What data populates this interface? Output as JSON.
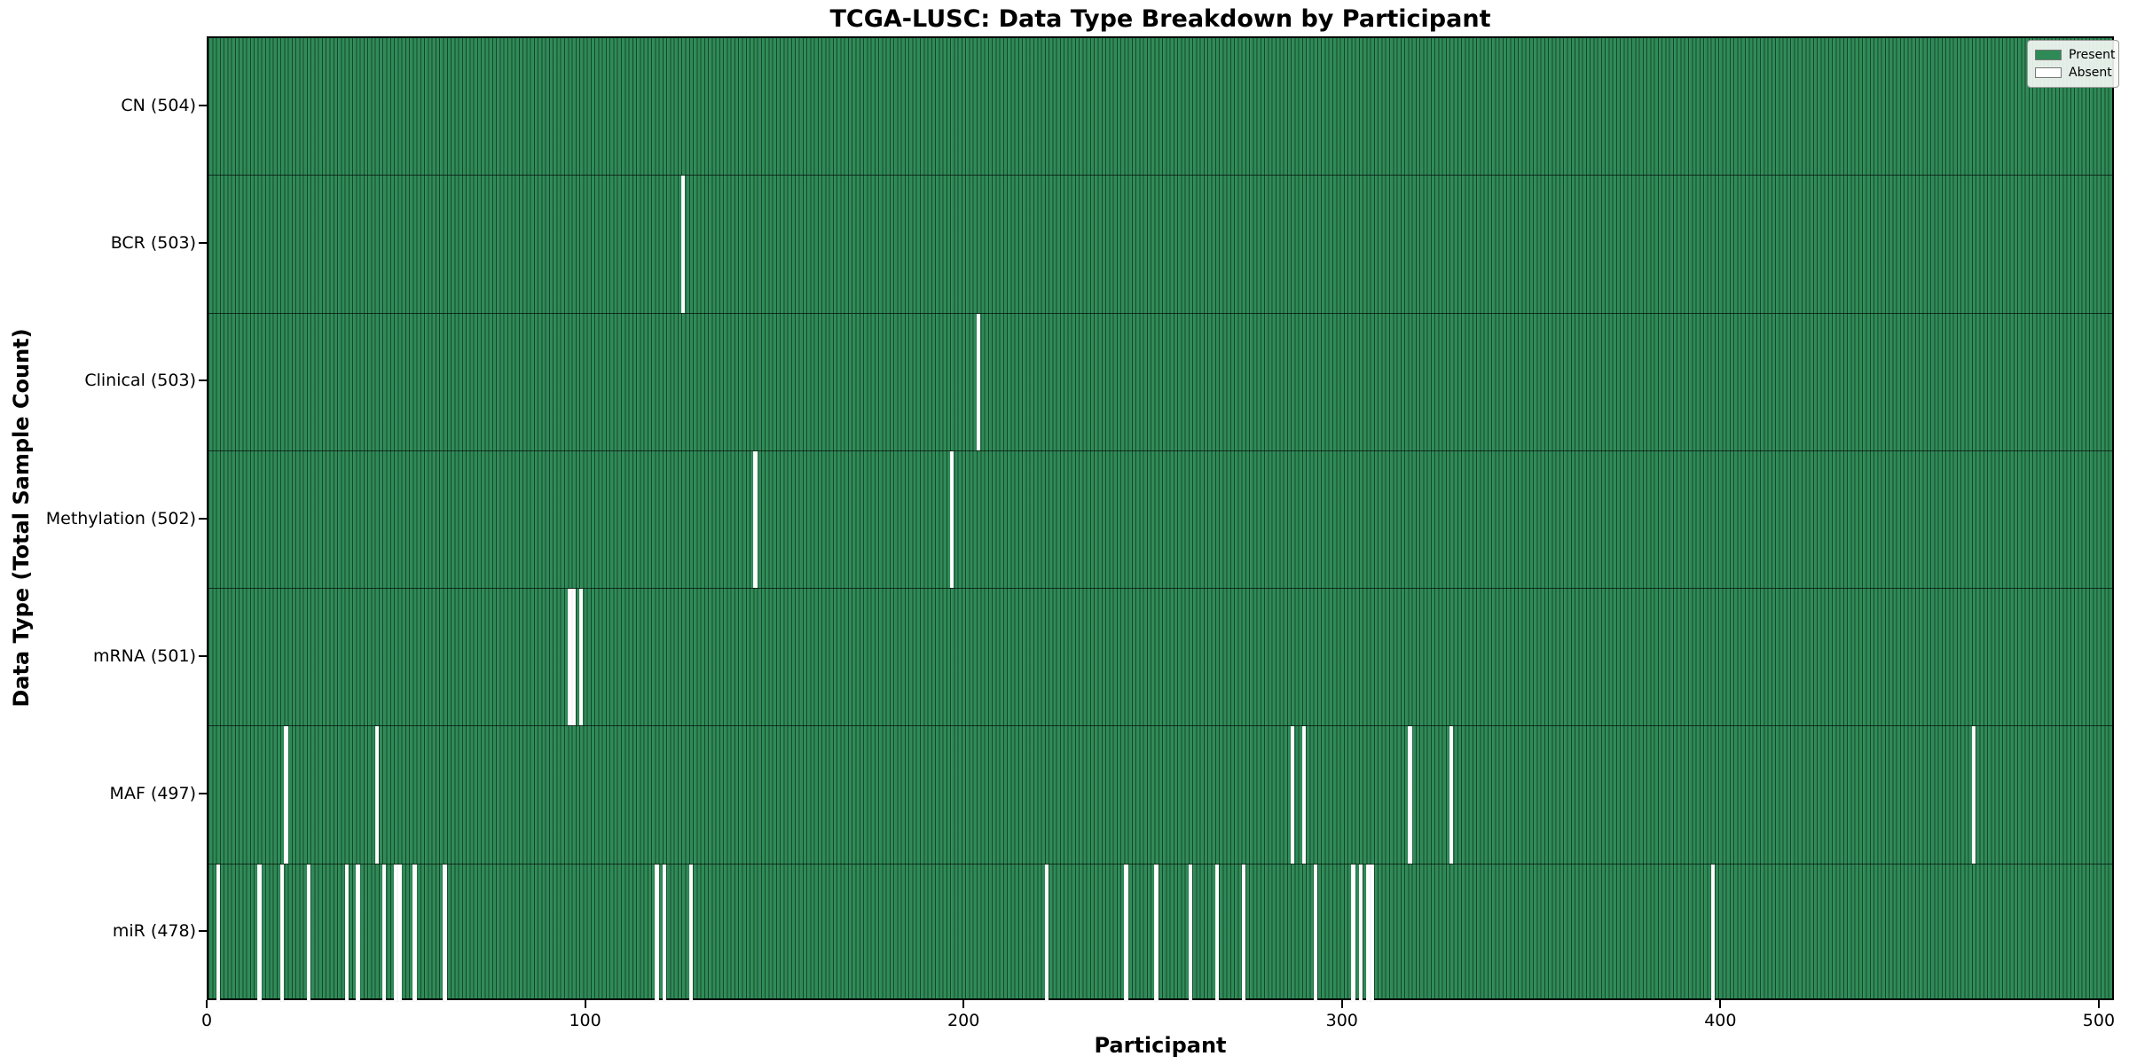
{
  "figure": {
    "title": "TCGA-LUSC: Data Type Breakdown by Participant",
    "xlabel": "Participant",
    "ylabel": "Data Type (Total Sample Count)"
  },
  "legend": {
    "items": [
      {
        "name": "present",
        "label": "Present",
        "color": "#2e8b57"
      },
      {
        "name": "absent",
        "label": "Absent",
        "color": "#ffffff"
      }
    ]
  },
  "chart_data": {
    "type": "heatmap",
    "subtype": "presence-absence matrix (horizontal bars per data type, one cell per participant)",
    "title": "TCGA-LUSC: Data Type Breakdown by Participant",
    "xlabel": "Participant",
    "ylabel": "Data Type (Total Sample Count)",
    "x_range": [
      0,
      504
    ],
    "x_ticks": [
      0,
      100,
      200,
      300,
      400,
      500
    ],
    "n_participants": 504,
    "present_color": "#2e8b57",
    "absent_color": "#ffffff",
    "legend_position": "upper right",
    "grid": false,
    "rows": [
      {
        "label": "CN (504)",
        "data_type": "CN",
        "present_count": 504,
        "absent_participants": []
      },
      {
        "label": "BCR (503)",
        "data_type": "BCR",
        "present_count": 503,
        "absent_participants": [
          125
        ]
      },
      {
        "label": "Clinical (503)",
        "data_type": "Clinical",
        "present_count": 503,
        "absent_participants": [
          203
        ]
      },
      {
        "label": "Methylation (502)",
        "data_type": "Methylation",
        "present_count": 502,
        "absent_participants": [
          144,
          196
        ]
      },
      {
        "label": "mRNA (501)",
        "data_type": "mRNA",
        "present_count": 501,
        "absent_participants": [
          95,
          96,
          98
        ]
      },
      {
        "label": "MAF (497)",
        "data_type": "MAF",
        "present_count": 497,
        "absent_participants": [
          20,
          44,
          286,
          289,
          317,
          328,
          466
        ]
      },
      {
        "label": "miR (478)",
        "data_type": "miR",
        "present_count": 478,
        "absent_participants": [
          2,
          13,
          19,
          26,
          36,
          39,
          46,
          49,
          50,
          54,
          62,
          118,
          120,
          127,
          221,
          242,
          250,
          259,
          266,
          273,
          292,
          302,
          304,
          306,
          307,
          397
        ]
      }
    ]
  }
}
